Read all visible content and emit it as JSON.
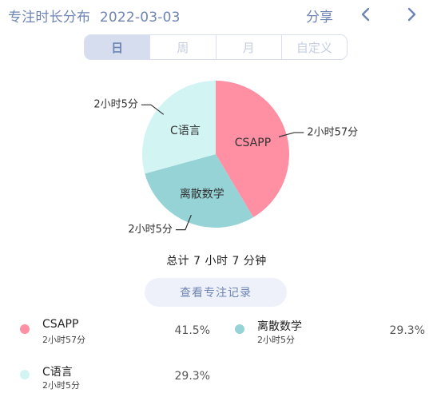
{
  "header": {
    "title": "专注时长分布",
    "date": "2022-03-03",
    "share_label": "分享"
  },
  "tabs": [
    {
      "label": "日",
      "active": true
    },
    {
      "label": "周",
      "active": false
    },
    {
      "label": "月",
      "active": false
    },
    {
      "label": "自定义",
      "active": false
    }
  ],
  "icons": {
    "prev": "chevron-left-icon",
    "next": "chevron-right-icon"
  },
  "colors": {
    "accent": "#6e85b3",
    "csapp": "#ff8fa3",
    "discrete": "#96d3d6",
    "clang": "#d2f5f4"
  },
  "chart_data": {
    "type": "pie",
    "slices": [
      {
        "name": "CSAPP",
        "minutes": 177,
        "label": "2小时57分",
        "percent": 41.5,
        "color": "#ff8fa3"
      },
      {
        "name": "离散数学",
        "minutes": 125,
        "label": "2小时5分",
        "percent": 29.3,
        "color": "#96d3d6"
      },
      {
        "name": "C语言",
        "minutes": 125,
        "label": "2小时5分",
        "percent": 29.3,
        "color": "#d2f5f4"
      }
    ]
  },
  "summary": {
    "total": "总计 7 小时 7 分钟"
  },
  "records_button": {
    "label": "查看专注记录"
  },
  "legend": [
    {
      "name": "CSAPP",
      "duration": "2小时57分",
      "percent": "41.5%",
      "color": "#ff8fa3"
    },
    {
      "name": "离散数学",
      "duration": "2小时5分",
      "percent": "29.3%",
      "color": "#96d3d6"
    },
    {
      "name": "C语言",
      "duration": "2小时5分",
      "percent": "29.3%",
      "color": "#d2f5f4"
    }
  ]
}
